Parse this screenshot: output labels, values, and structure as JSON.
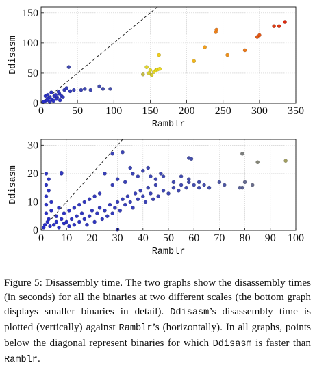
{
  "chart_data": [
    {
      "type": "scatter",
      "xlabel": "Ramblr",
      "ylabel": "Ddisasm",
      "xlim": [
        0,
        350
      ],
      "ylim": [
        0,
        160
      ],
      "xticks": [
        0,
        50,
        100,
        150,
        200,
        250,
        300,
        350
      ],
      "yticks": [
        0,
        50,
        100,
        150
      ],
      "xtick_labels": [
        "0",
        "50",
        "100",
        "150",
        "200",
        "250",
        "300",
        "350"
      ],
      "ytick_labels": [
        "0",
        "50",
        "100",
        "150"
      ],
      "grid": true,
      "diagonal": "dashed y = x",
      "color_scale": "point color varies blue (small) to yellow to red (large)",
      "points": [
        [
          32,
          22
        ],
        [
          35,
          25
        ],
        [
          40,
          20
        ],
        [
          45,
          22
        ],
        [
          55,
          22
        ],
        [
          60,
          24
        ],
        [
          68,
          22
        ],
        [
          80,
          28
        ],
        [
          85,
          24
        ],
        [
          95,
          24
        ],
        [
          5,
          3
        ],
        [
          8,
          5
        ],
        [
          10,
          8
        ],
        [
          12,
          10
        ],
        [
          15,
          6
        ],
        [
          18,
          12
        ],
        [
          20,
          14
        ],
        [
          22,
          9
        ],
        [
          25,
          16
        ],
        [
          28,
          12
        ],
        [
          3,
          2
        ],
        [
          6,
          12
        ],
        [
          9,
          14
        ],
        [
          14,
          18
        ],
        [
          17,
          4
        ],
        [
          21,
          7
        ],
        [
          26,
          5
        ],
        [
          30,
          10
        ],
        [
          12,
          2
        ],
        [
          24,
          19
        ],
        [
          38,
          60
        ],
        [
          140,
          48
        ],
        [
          145,
          60
        ],
        [
          148,
          50
        ],
        [
          150,
          55
        ],
        [
          152,
          47
        ],
        [
          155,
          52
        ],
        [
          158,
          55
        ],
        [
          160,
          56
        ],
        [
          162,
          80
        ],
        [
          163,
          57
        ],
        [
          210,
          70
        ],
        [
          225,
          93
        ],
        [
          240,
          118
        ],
        [
          241,
          122
        ],
        [
          256,
          80
        ],
        [
          280,
          88
        ],
        [
          297,
          110
        ],
        [
          300,
          113
        ],
        [
          320,
          128
        ],
        [
          327,
          128
        ],
        [
          335,
          135
        ]
      ]
    },
    {
      "type": "scatter",
      "xlabel": "Ramblr",
      "ylabel": "Ddisasm",
      "xlim": [
        0,
        100
      ],
      "ylim": [
        0,
        32
      ],
      "xticks": [
        0,
        10,
        20,
        30,
        40,
        50,
        60,
        70,
        80,
        90,
        100
      ],
      "yticks": [
        0,
        10,
        20,
        30
      ],
      "xtick_labels": [
        "0",
        "10",
        "20",
        "30",
        "40",
        "50",
        "60",
        "70",
        "80",
        "90",
        "100"
      ],
      "ytick_labels": [
        "0",
        "10",
        "20",
        "30"
      ],
      "grid": true,
      "diagonal": "dashed y = x",
      "color_scale": "point color varies blue (small) to yellow to red (large)",
      "points": [
        [
          2,
          20
        ],
        [
          2,
          16
        ],
        [
          2,
          12
        ],
        [
          2,
          9
        ],
        [
          2,
          6
        ],
        [
          3,
          18
        ],
        [
          3,
          14
        ],
        [
          3,
          4
        ],
        [
          4,
          10
        ],
        [
          4,
          7
        ],
        [
          8,
          20
        ],
        [
          8,
          20.3
        ],
        [
          1,
          1
        ],
        [
          1.5,
          2
        ],
        [
          2.5,
          3
        ],
        [
          3.5,
          1.5
        ],
        [
          5,
          2
        ],
        [
          6,
          3
        ],
        [
          7,
          1
        ],
        [
          8,
          4
        ],
        [
          9,
          2.5
        ],
        [
          10,
          3
        ],
        [
          11,
          1.5
        ],
        [
          12,
          4
        ],
        [
          13,
          2
        ],
        [
          14,
          5
        ],
        [
          15,
          3
        ],
        [
          16,
          6
        ],
        [
          17,
          4
        ],
        [
          18,
          2
        ],
        [
          19,
          5
        ],
        [
          20,
          7
        ],
        [
          21,
          3
        ],
        [
          22,
          6
        ],
        [
          23,
          8
        ],
        [
          24,
          4
        ],
        [
          25,
          7
        ],
        [
          26,
          5
        ],
        [
          27,
          9
        ],
        [
          28,
          6
        ],
        [
          29,
          8
        ],
        [
          30,
          10
        ],
        [
          31,
          7
        ],
        [
          32,
          11
        ],
        [
          33,
          9
        ],
        [
          34,
          12
        ],
        [
          35,
          10
        ],
        [
          36,
          8
        ],
        [
          37,
          13
        ],
        [
          38,
          11
        ],
        [
          39,
          14
        ],
        [
          40,
          12
        ],
        [
          41,
          10
        ],
        [
          42,
          15
        ],
        [
          43,
          13
        ],
        [
          44,
          11
        ],
        [
          45,
          16
        ],
        [
          46,
          12
        ],
        [
          48,
          14
        ],
        [
          50,
          13
        ],
        [
          52,
          15
        ],
        [
          54,
          14
        ],
        [
          55,
          16
        ],
        [
          57,
          15
        ],
        [
          58,
          17
        ],
        [
          60,
          16
        ],
        [
          62,
          15
        ],
        [
          64,
          16
        ],
        [
          66,
          15
        ],
        [
          70,
          17
        ],
        [
          25,
          20
        ],
        [
          28,
          16
        ],
        [
          30,
          18
        ],
        [
          33,
          17
        ],
        [
          35,
          22
        ],
        [
          36,
          20
        ],
        [
          38,
          19
        ],
        [
          40,
          21
        ],
        [
          43,
          19
        ],
        [
          45,
          18
        ],
        [
          48,
          19
        ],
        [
          52,
          17
        ],
        [
          55,
          19
        ],
        [
          58,
          18
        ],
        [
          62,
          17
        ],
        [
          72,
          16
        ],
        [
          79,
          15
        ],
        [
          80,
          17
        ],
        [
          78,
          15
        ],
        [
          83,
          16
        ],
        [
          30,
          0.3
        ],
        [
          28,
          27
        ],
        [
          32,
          27.5
        ],
        [
          42,
          22
        ],
        [
          47,
          20
        ],
        [
          58,
          25.5
        ],
        [
          59,
          25.2
        ],
        [
          79,
          27
        ],
        [
          85,
          24
        ],
        [
          96,
          24.5
        ],
        [
          6,
          5
        ],
        [
          7,
          8
        ],
        [
          9,
          6
        ],
        [
          11,
          7
        ],
        [
          13,
          8
        ],
        [
          15,
          9
        ],
        [
          17,
          10
        ],
        [
          19,
          11
        ],
        [
          21,
          12
        ],
        [
          23,
          13
        ]
      ]
    }
  ],
  "caption": {
    "prefix": "Figure 5: Disassembly time. The two graphs show the disassembly times (in seconds) for all the binaries at two different scales (the bottom graph displays smaller binaries in detail). ",
    "ddisasm1": "Ddisasm",
    "mid1": "’s disassembly time is plotted (vertically) against ",
    "ramblr1": "Ramblr",
    "mid2": "’s (horizontally). In all graphs, points below the diagonal represent binaries for which ",
    "ddisasm2": "Ddisasm",
    "mid3": " is faster than ",
    "ramblr2": "Ramblr",
    "suffix": "."
  }
}
